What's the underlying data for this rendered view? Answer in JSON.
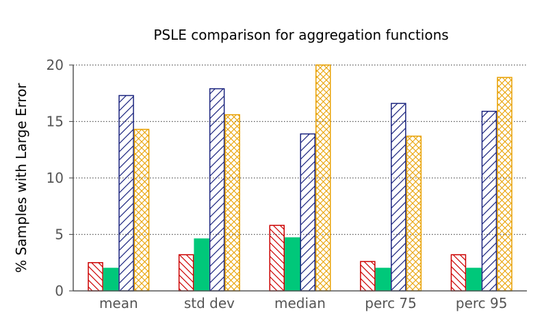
{
  "chart_data": {
    "type": "bar",
    "title": "PSLE comparison for aggregation functions",
    "xlabel": "",
    "ylabel": "% Samples with Large Error",
    "ylim": [
      0,
      20
    ],
    "yticks": [
      "0",
      "5",
      "10",
      "15",
      "20"
    ],
    "grid": "horizontal dotted",
    "legend": "none",
    "categories": [
      "mean",
      "std dev",
      "median",
      "perc 75",
      "perc 95"
    ],
    "series": [
      {
        "values": [
          2.5,
          3.2,
          5.8,
          2.6,
          3.2
        ],
        "color": "#cc0000",
        "fill": "back-hatch"
      },
      {
        "values": [
          2.0,
          4.6,
          4.7,
          2.0,
          2.0
        ],
        "color": "#00c87a",
        "fill": "solid"
      },
      {
        "values": [
          17.3,
          17.9,
          13.9,
          16.6,
          15.9
        ],
        "color": "#1a237e",
        "fill": "forward-hatch"
      },
      {
        "values": [
          14.3,
          15.6,
          20.0,
          13.7,
          18.9
        ],
        "color": "#e8a000",
        "fill": "cross-hatch"
      }
    ]
  }
}
